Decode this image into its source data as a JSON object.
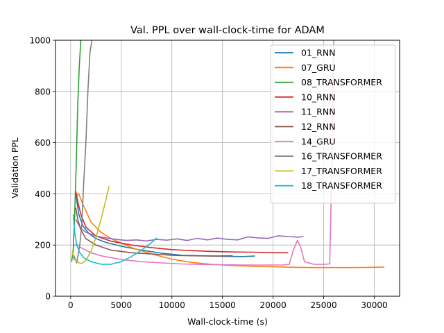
{
  "chart_data": {
    "type": "line",
    "title": "Val. PPL over wall-clock-time for ADAM",
    "xlabel": "Wall-clock-time (s)",
    "ylabel": "Validation PPL",
    "xlim": [
      -1500,
      32500
    ],
    "ylim": [
      0,
      1000
    ],
    "xticks": [
      0,
      5000,
      10000,
      15000,
      20000,
      25000,
      30000
    ],
    "yticks": [
      0,
      200,
      400,
      600,
      800,
      1000
    ],
    "grid": true,
    "legend_position": "top-right",
    "series": [
      {
        "name": "01_RNN",
        "color": "#1f77b4",
        "x": [
          500,
          800,
          1200,
          1800,
          2500,
          3500,
          5000,
          7000,
          9000,
          11000,
          13000,
          15000,
          17000,
          18200
        ],
        "y": [
          400,
          320,
          275,
          245,
          225,
          210,
          195,
          180,
          168,
          160,
          158,
          156,
          155,
          157
        ]
      },
      {
        "name": "07_GRU",
        "color": "#ff7f0e",
        "x": [
          500,
          800,
          1200,
          2000,
          3000,
          4000,
          6000,
          8000,
          10000,
          12000,
          14000,
          16000,
          18000,
          20000,
          22000,
          24000,
          26000,
          28000,
          30000,
          31000
        ],
        "y": [
          390,
          400,
          360,
          290,
          250,
          225,
          190,
          165,
          145,
          132,
          124,
          120,
          117,
          115,
          113,
          112,
          112,
          112,
          113,
          114
        ]
      },
      {
        "name": "08_TRANSFORMER",
        "color": "#2ca02c",
        "x": [
          100,
          250,
          400,
          550,
          700,
          850,
          1000
        ],
        "y": [
          135,
          180,
          320,
          520,
          750,
          900,
          1000
        ]
      },
      {
        "name": "10_RNN",
        "color": "#d62728",
        "x": [
          500,
          700,
          1000,
          1500,
          2500,
          4000,
          6000,
          8000,
          10000,
          12000,
          14000,
          16000,
          18000,
          20000,
          21500
        ],
        "y": [
          410,
          370,
          320,
          270,
          235,
          215,
          200,
          190,
          182,
          178,
          175,
          173,
          172,
          170,
          170
        ]
      },
      {
        "name": "11_RNN",
        "color": "#9467bd",
        "x": [
          500,
          1000,
          1500,
          2500,
          3500,
          4500,
          5500,
          6500,
          7500,
          8500,
          9500,
          10500,
          11500,
          12500,
          13500,
          14500,
          15500,
          16500,
          17500,
          18500,
          19500,
          20500,
          21500,
          22500,
          23000
        ],
        "y": [
          300,
          265,
          250,
          235,
          228,
          222,
          218,
          220,
          216,
          222,
          219,
          224,
          218,
          226,
          220,
          227,
          222,
          220,
          232,
          228,
          226,
          236,
          233,
          231,
          233
        ]
      },
      {
        "name": "12_RNN",
        "color": "#8c564b",
        "x": [
          500,
          700,
          1000,
          1500,
          2500,
          4000,
          6000,
          8000,
          10000,
          12000,
          14000,
          16000
        ],
        "y": [
          345,
          300,
          260,
          225,
          200,
          180,
          170,
          165,
          160,
          158,
          157,
          158
        ]
      },
      {
        "name": "14_GRU",
        "color": "#e377c2",
        "x": [
          300,
          600,
          1000,
          2000,
          3000,
          5000,
          7000,
          9000,
          11000,
          13000,
          15000,
          17000,
          19000,
          21000,
          21600,
          22000,
          22400,
          22700,
          23100,
          24000,
          25000,
          25600,
          25800,
          25900,
          26000
        ],
        "y": [
          195,
          205,
          190,
          170,
          158,
          143,
          135,
          130,
          126,
          124,
          123,
          122,
          122,
          122,
          125,
          180,
          218,
          195,
          135,
          125,
          125,
          126,
          500,
          800,
          1000
        ]
      },
      {
        "name": "16_TRANSFORMER",
        "color": "#7f7f7f",
        "x": [
          300,
          600,
          900,
          1100,
          1300,
          1500,
          1700,
          1900,
          2100
        ],
        "y": [
          160,
          130,
          200,
          280,
          450,
          600,
          800,
          950,
          1000
        ]
      },
      {
        "name": "17_TRANSFORMER",
        "color": "#bcbd22",
        "x": [
          150,
          300,
          500,
          800,
          1100,
          1500,
          2000,
          2500,
          3000,
          3500,
          3800
        ],
        "y": [
          175,
          145,
          140,
          130,
          128,
          140,
          175,
          230,
          300,
          380,
          430
        ]
      },
      {
        "name": "18_TRANSFORMER",
        "color": "#17becf",
        "x": [
          250,
          400,
          600,
          900,
          1300,
          2000,
          3000,
          4000,
          5000,
          6000,
          7000,
          8000,
          8500
        ],
        "y": [
          320,
          250,
          200,
          170,
          150,
          135,
          125,
          125,
          135,
          155,
          180,
          210,
          228
        ]
      }
    ]
  }
}
